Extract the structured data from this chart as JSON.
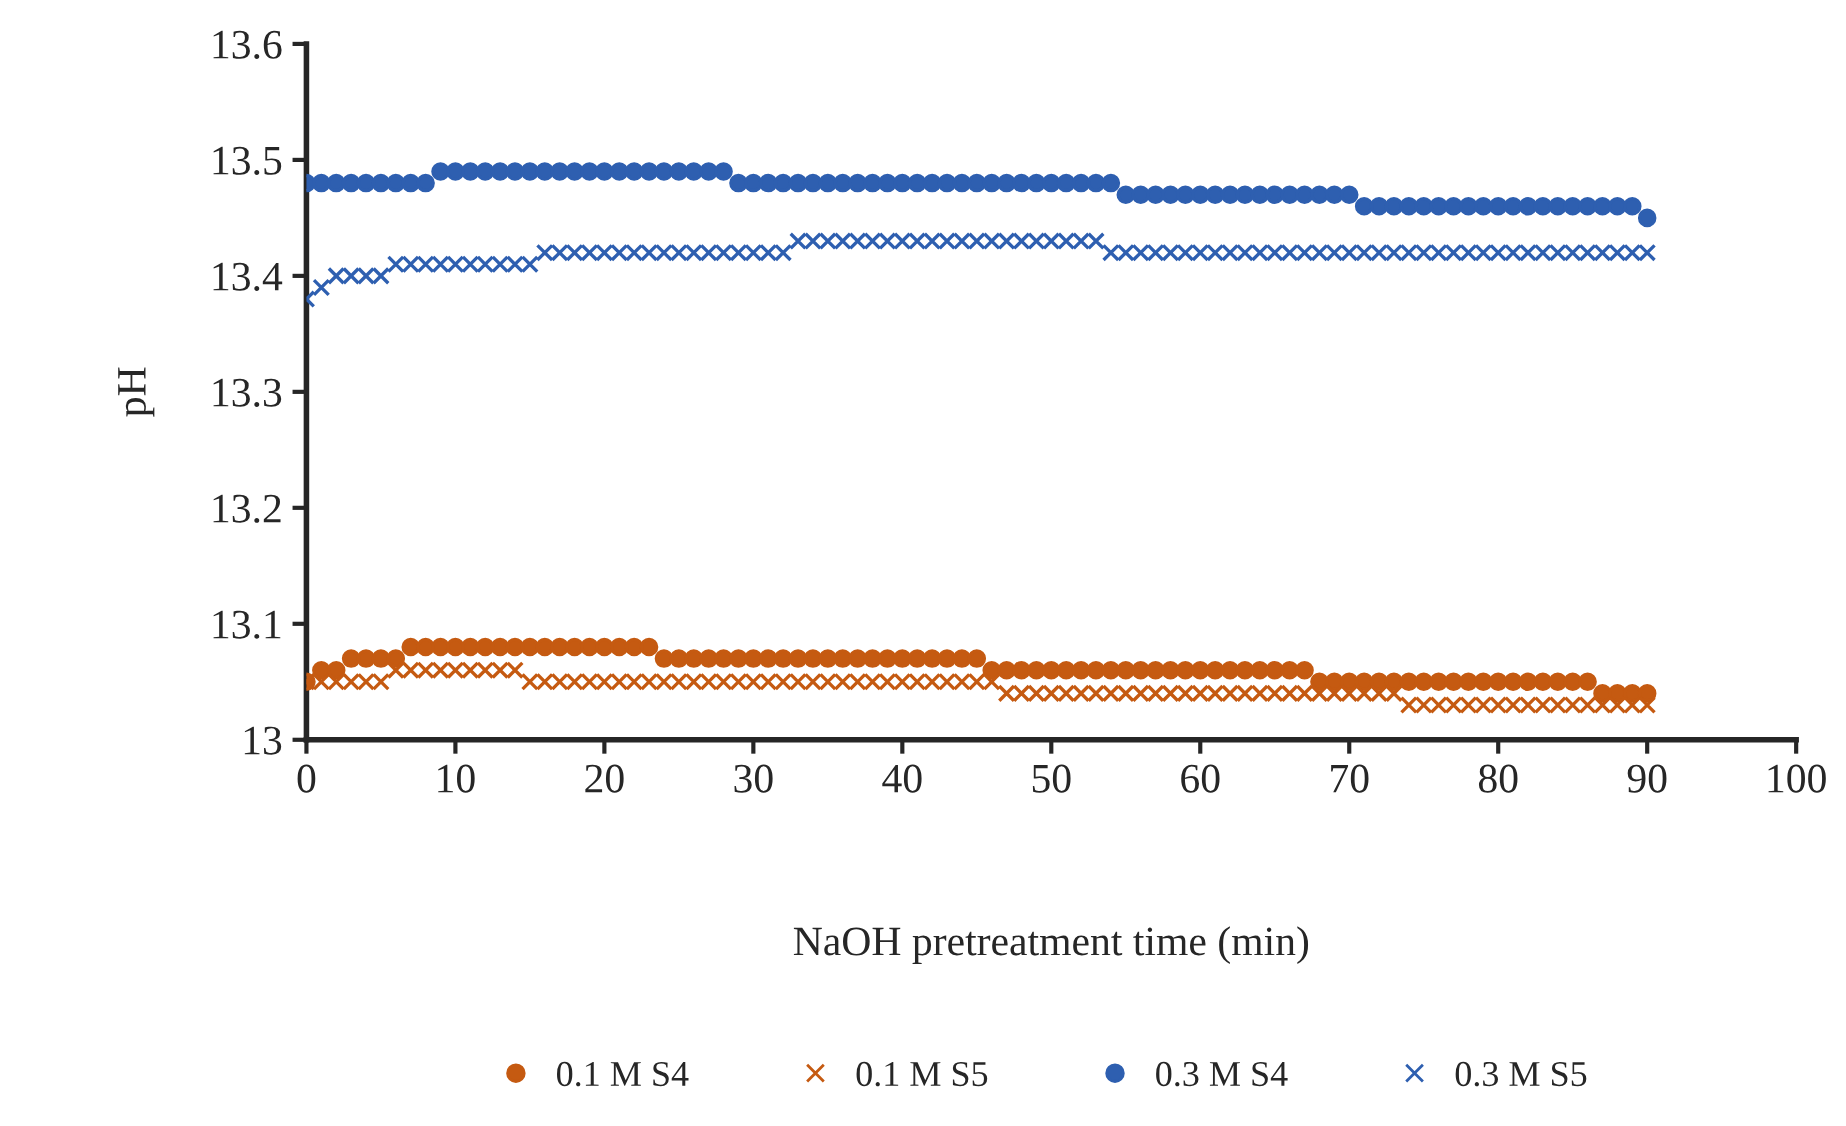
{
  "chart_data": {
    "type": "scatter",
    "xlabel": "NaOH pretreatment time (min)",
    "ylabel": "pH",
    "x": [
      0,
      1,
      2,
      3,
      4,
      5,
      6,
      7,
      8,
      9,
      10,
      11,
      12,
      13,
      14,
      15,
      16,
      17,
      18,
      19,
      20,
      21,
      22,
      23,
      24,
      25,
      26,
      27,
      28,
      29,
      30,
      31,
      32,
      33,
      34,
      35,
      36,
      37,
      38,
      39,
      40,
      41,
      42,
      43,
      44,
      45,
      46,
      47,
      48,
      49,
      50,
      51,
      52,
      53,
      54,
      55,
      56,
      57,
      58,
      59,
      60,
      61,
      62,
      63,
      64,
      65,
      66,
      67,
      68,
      69,
      70,
      71,
      72,
      73,
      74,
      75,
      76,
      77,
      78,
      79,
      80,
      81,
      82,
      83,
      84,
      85,
      86,
      87,
      88,
      89,
      90
    ],
    "series": [
      {
        "name": "0.1 M S4",
        "color": "#c55a11",
        "marker": "circle",
        "values": [
          13.05,
          13.06,
          13.06,
          13.07,
          13.07,
          13.07,
          13.07,
          13.08,
          13.08,
          13.08,
          13.08,
          13.08,
          13.08,
          13.08,
          13.08,
          13.08,
          13.08,
          13.08,
          13.08,
          13.08,
          13.08,
          13.08,
          13.08,
          13.08,
          13.07,
          13.07,
          13.07,
          13.07,
          13.07,
          13.07,
          13.07,
          13.07,
          13.07,
          13.07,
          13.07,
          13.07,
          13.07,
          13.07,
          13.07,
          13.07,
          13.07,
          13.07,
          13.07,
          13.07,
          13.07,
          13.07,
          13.06,
          13.06,
          13.06,
          13.06,
          13.06,
          13.06,
          13.06,
          13.06,
          13.06,
          13.06,
          13.06,
          13.06,
          13.06,
          13.06,
          13.06,
          13.06,
          13.06,
          13.06,
          13.06,
          13.06,
          13.06,
          13.06,
          13.05,
          13.05,
          13.05,
          13.05,
          13.05,
          13.05,
          13.05,
          13.05,
          13.05,
          13.05,
          13.05,
          13.05,
          13.05,
          13.05,
          13.05,
          13.05,
          13.05,
          13.05,
          13.05,
          13.04,
          13.04,
          13.04,
          13.04
        ]
      },
      {
        "name": "0.1 M S5",
        "color": "#c55a11",
        "marker": "cross",
        "values": [
          13.05,
          13.05,
          13.05,
          13.05,
          13.05,
          13.05,
          13.06,
          13.06,
          13.06,
          13.06,
          13.06,
          13.06,
          13.06,
          13.06,
          13.06,
          13.05,
          13.05,
          13.05,
          13.05,
          13.05,
          13.05,
          13.05,
          13.05,
          13.05,
          13.05,
          13.05,
          13.05,
          13.05,
          13.05,
          13.05,
          13.05,
          13.05,
          13.05,
          13.05,
          13.05,
          13.05,
          13.05,
          13.05,
          13.05,
          13.05,
          13.05,
          13.05,
          13.05,
          13.05,
          13.05,
          13.05,
          13.05,
          13.04,
          13.04,
          13.04,
          13.04,
          13.04,
          13.04,
          13.04,
          13.04,
          13.04,
          13.04,
          13.04,
          13.04,
          13.04,
          13.04,
          13.04,
          13.04,
          13.04,
          13.04,
          13.04,
          13.04,
          13.04,
          13.04,
          13.04,
          13.04,
          13.04,
          13.04,
          13.04,
          13.03,
          13.03,
          13.03,
          13.03,
          13.03,
          13.03,
          13.03,
          13.03,
          13.03,
          13.03,
          13.03,
          13.03,
          13.03,
          13.03,
          13.03,
          13.03,
          13.03
        ]
      },
      {
        "name": "0.3 M S4",
        "color": "#2e5fb0",
        "marker": "circle",
        "values": [
          13.48,
          13.48,
          13.48,
          13.48,
          13.48,
          13.48,
          13.48,
          13.48,
          13.48,
          13.49,
          13.49,
          13.49,
          13.49,
          13.49,
          13.49,
          13.49,
          13.49,
          13.49,
          13.49,
          13.49,
          13.49,
          13.49,
          13.49,
          13.49,
          13.49,
          13.49,
          13.49,
          13.49,
          13.49,
          13.48,
          13.48,
          13.48,
          13.48,
          13.48,
          13.48,
          13.48,
          13.48,
          13.48,
          13.48,
          13.48,
          13.48,
          13.48,
          13.48,
          13.48,
          13.48,
          13.48,
          13.48,
          13.48,
          13.48,
          13.48,
          13.48,
          13.48,
          13.48,
          13.48,
          13.48,
          13.47,
          13.47,
          13.47,
          13.47,
          13.47,
          13.47,
          13.47,
          13.47,
          13.47,
          13.47,
          13.47,
          13.47,
          13.47,
          13.47,
          13.47,
          13.47,
          13.46,
          13.46,
          13.46,
          13.46,
          13.46,
          13.46,
          13.46,
          13.46,
          13.46,
          13.46,
          13.46,
          13.46,
          13.46,
          13.46,
          13.46,
          13.46,
          13.46,
          13.46,
          13.46,
          13.45
        ]
      },
      {
        "name": "0.3 M S5",
        "color": "#2e5fb0",
        "marker": "cross",
        "values": [
          13.38,
          13.39,
          13.4,
          13.4,
          13.4,
          13.4,
          13.41,
          13.41,
          13.41,
          13.41,
          13.41,
          13.41,
          13.41,
          13.41,
          13.41,
          13.41,
          13.42,
          13.42,
          13.42,
          13.42,
          13.42,
          13.42,
          13.42,
          13.42,
          13.42,
          13.42,
          13.42,
          13.42,
          13.42,
          13.42,
          13.42,
          13.42,
          13.42,
          13.43,
          13.43,
          13.43,
          13.43,
          13.43,
          13.43,
          13.43,
          13.43,
          13.43,
          13.43,
          13.43,
          13.43,
          13.43,
          13.43,
          13.43,
          13.43,
          13.43,
          13.43,
          13.43,
          13.43,
          13.43,
          13.42,
          13.42,
          13.42,
          13.42,
          13.42,
          13.42,
          13.42,
          13.42,
          13.42,
          13.42,
          13.42,
          13.42,
          13.42,
          13.42,
          13.42,
          13.42,
          13.42,
          13.42,
          13.42,
          13.42,
          13.42,
          13.42,
          13.42,
          13.42,
          13.42,
          13.42,
          13.42,
          13.42,
          13.42,
          13.42,
          13.42,
          13.42,
          13.42,
          13.42,
          13.42,
          13.42,
          13.42
        ]
      }
    ],
    "xlim": [
      0,
      100
    ],
    "xticks": [
      0,
      10,
      20,
      30,
      40,
      50,
      60,
      70,
      80,
      90,
      100
    ],
    "ylim": [
      13,
      13.6
    ],
    "yticks": [
      13,
      13.1,
      13.2,
      13.3,
      13.4,
      13.5,
      13.6
    ],
    "grid": false,
    "legend": "bottom"
  }
}
